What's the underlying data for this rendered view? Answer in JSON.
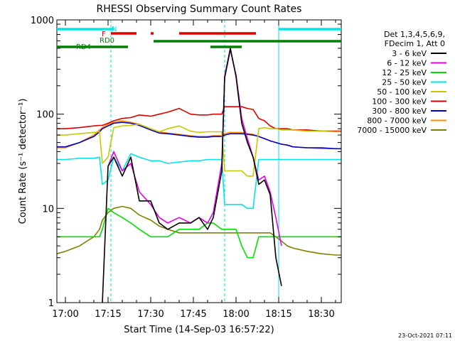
{
  "chart_data": {
    "type": "line",
    "title": "RHESSI Observing Summary Count Rates",
    "xlabel": "Start Time (14-Sep-03 16:57:22)",
    "ylabel": "Count Rate (s⁻¹ detector⁻¹)",
    "yscale": "log",
    "ylim": [
      1,
      1000
    ],
    "xlim": [
      "16:57",
      "18:37"
    ],
    "x_ticks": [
      "17:00",
      "17:15",
      "17:30",
      "17:45",
      "18:00",
      "18:15",
      "18:30"
    ],
    "y_ticks": [
      "1",
      "10",
      "100",
      "1000"
    ],
    "legend": {
      "placement": "right",
      "header": [
        "Det 1,3,4,5,6,9,",
        "FDecim 1, Att 0"
      ]
    },
    "flags": [
      {
        "label": "N",
        "color": "#00e5e5",
        "segments": [
          [
            "16:57",
            "17:17"
          ],
          [
            "18:15",
            "18:37"
          ]
        ]
      },
      {
        "label": "F",
        "color": "#e00000",
        "segments": [
          [
            "17:16",
            "17:25"
          ],
          [
            "17:30",
            "17:31"
          ],
          [
            "17:40",
            "18:07"
          ]
        ]
      },
      {
        "label": "RD0",
        "color": "#008000",
        "segments": [
          [
            "17:31",
            "18:37"
          ]
        ]
      },
      {
        "label": "RD4",
        "color": "#008000",
        "segments": [
          [
            "16:57",
            "17:22"
          ],
          [
            "17:51",
            "18:02"
          ]
        ]
      }
    ],
    "vlines": [
      "16:57",
      "17:16",
      "17:56",
      "18:15",
      "18:37"
    ],
    "times": [
      "16:57",
      "17:00",
      "17:05",
      "17:10",
      "17:12",
      "17:13",
      "17:15",
      "17:17",
      "17:20",
      "17:23",
      "17:26",
      "17:30",
      "17:33",
      "17:36",
      "17:40",
      "17:44",
      "17:47",
      "17:50",
      "17:52",
      "17:55",
      "17:56",
      "17:58",
      "18:00",
      "18:02",
      "18:04",
      "18:06",
      "18:08",
      "18:10",
      "18:12",
      "18:14",
      "18:16",
      "18:18",
      "18:20",
      "18:25",
      "18:30",
      "18:35",
      "18:37"
    ],
    "series": [
      {
        "name": "3 - 6 keV",
        "color": "#000000",
        "values": [
          null,
          null,
          null,
          null,
          null,
          1,
          28,
          35,
          22,
          35,
          12,
          12,
          7,
          6,
          7,
          7,
          8,
          6,
          8,
          25,
          250,
          500,
          250,
          80,
          50,
          35,
          18,
          20,
          14,
          3,
          1.5,
          null,
          null,
          null,
          null,
          null,
          null
        ]
      },
      {
        "name": "6 - 12 keV",
        "color": "#e600e6",
        "values": [
          null,
          null,
          null,
          null,
          null,
          null,
          28,
          40,
          25,
          30,
          15,
          11,
          8,
          7,
          8,
          7,
          8,
          7,
          9,
          30,
          240,
          480,
          260,
          90,
          55,
          35,
          20,
          22,
          15,
          8,
          4,
          null,
          null,
          null,
          null,
          null,
          null
        ]
      },
      {
        "name": "12 - 25 keV",
        "color": "#00e000",
        "values": [
          5,
          5,
          5,
          5,
          5,
          6,
          10,
          9,
          8,
          7,
          6,
          5,
          5,
          5,
          6,
          6,
          6,
          7,
          7,
          6,
          6,
          6,
          6,
          4,
          3,
          3,
          5,
          5,
          5,
          5,
          5,
          5,
          5,
          5,
          5,
          5,
          5
        ]
      },
      {
        "name": "25 - 50 keV",
        "color": "#00e5e5",
        "values": [
          33,
          33,
          34,
          34,
          35,
          18,
          20,
          35,
          25,
          38,
          35,
          32,
          32,
          30,
          31,
          32,
          32,
          33,
          33,
          33,
          11,
          11,
          11,
          11,
          10,
          10,
          33,
          33,
          33,
          33,
          33,
          33,
          33,
          33,
          33,
          33,
          33
        ]
      },
      {
        "name": "50 - 100 keV",
        "color": "#c8c800",
        "values": [
          60,
          60,
          62,
          64,
          65,
          30,
          35,
          72,
          75,
          76,
          78,
          70,
          65,
          70,
          75,
          66,
          64,
          65,
          65,
          65,
          25,
          25,
          25,
          25,
          22,
          22,
          70,
          72,
          70,
          70,
          68,
          68,
          68,
          66,
          66,
          65,
          65
        ]
      },
      {
        "name": "100 - 300 keV",
        "color": "#e00000",
        "values": [
          70,
          70,
          72,
          75,
          76,
          76,
          80,
          85,
          90,
          92,
          98,
          95,
          100,
          105,
          115,
          100,
          98,
          98,
          100,
          100,
          120,
          120,
          120,
          120,
          115,
          112,
          90,
          85,
          75,
          70,
          70,
          70,
          68,
          68,
          66,
          66,
          66
        ]
      },
      {
        "name": "300 - 800 keV",
        "color": "#0000c8",
        "values": [
          45,
          45,
          50,
          58,
          65,
          70,
          75,
          80,
          82,
          80,
          76,
          68,
          63,
          62,
          60,
          58,
          57,
          57,
          58,
          58,
          60,
          62,
          62,
          62,
          61,
          60,
          58,
          55,
          52,
          50,
          48,
          47,
          45,
          44,
          44,
          43,
          43
        ]
      },
      {
        "name": "800 - 7000 keV",
        "color": "#ff8c00",
        "values": [
          44,
          44,
          50,
          60,
          68,
          72,
          78,
          82,
          85,
          82,
          78,
          70,
          65,
          63,
          61,
          59,
          58,
          58,
          59,
          59,
          62,
          64,
          64,
          64,
          62,
          61,
          58,
          55,
          52,
          50,
          48,
          47,
          45,
          44,
          43,
          43,
          43
        ]
      },
      {
        "name": "7000 - 15000 keV",
        "color": "#808000",
        "values": [
          3.3,
          3.5,
          4,
          5,
          6,
          7.5,
          9,
          10,
          10.5,
          10,
          8.5,
          7.5,
          6.5,
          6,
          5.5,
          5.5,
          5.5,
          5.5,
          5.5,
          5.5,
          5.5,
          5.5,
          5.5,
          5.5,
          5.5,
          5.5,
          5.5,
          5.5,
          5.5,
          5,
          4.5,
          4,
          3.8,
          3.5,
          3.3,
          3.2,
          3.2
        ]
      }
    ]
  },
  "timestamp": "23-Oct-2021 07:11"
}
